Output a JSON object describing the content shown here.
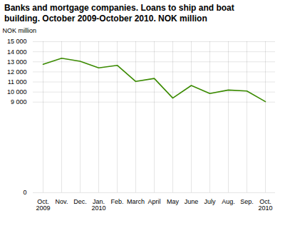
{
  "chart_data": {
    "type": "line",
    "title": "Banks and mortgage companies. Loans to ship and boat",
    "subtitle": "building. October 2009-October 2010. NOK million",
    "ylabel": "NOK million",
    "categories": [
      "Oct.\n2009",
      "Nov.",
      "Dec.",
      "Jan.\n2010",
      "Feb.",
      "March",
      "April",
      "May",
      "June",
      "July",
      "Aug.",
      "Sep.",
      "Oct.\n2010"
    ],
    "values": [
      12750,
      13350,
      13050,
      12400,
      12650,
      11050,
      11350,
      9400,
      10650,
      9850,
      10200,
      10100,
      9050
    ],
    "color": "#3a8a00",
    "ylim": [
      0,
      15000
    ],
    "yticks": [
      0,
      {
        "value": 9000,
        "label": "9 000"
      },
      {
        "value": 10000,
        "label": "10 000"
      },
      {
        "value": 11000,
        "label": "11 000"
      },
      {
        "value": 12000,
        "label": "12 000"
      },
      {
        "value": 13000,
        "label": "13 000"
      },
      {
        "value": 14000,
        "label": "14 000"
      },
      {
        "value": 15000,
        "label": "15 000"
      }
    ],
    "grid": true
  }
}
